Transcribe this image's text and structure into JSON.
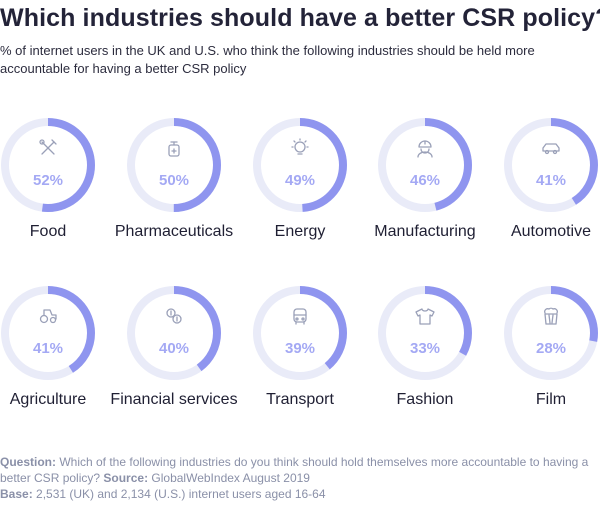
{
  "header": {
    "title": "Which industries should have a better CSR policy?",
    "subtitle": "% of internet users in the UK and U.S. who think the following industries should be held more accountable for having a better CSR policy"
  },
  "colors": {
    "ring_track": "#e9ebf8",
    "ring_fill": "#8f95ef",
    "value_text": "#a4a9f4",
    "icon": "#9aa0b8",
    "label": "#1f1f33"
  },
  "chart_data": {
    "type": "donut-grid",
    "title": "Which industries should have a better CSR policy?",
    "unit": "%",
    "categories": [
      "Food",
      "Pharmaceuticals",
      "Energy",
      "Manufacturing",
      "Automotive",
      "Agriculture",
      "Financial services",
      "Transport",
      "Fashion",
      "Film"
    ],
    "values": [
      52,
      50,
      49,
      46,
      41,
      41,
      40,
      39,
      33,
      28
    ],
    "value_labels": [
      "52%",
      "50%",
      "49%",
      "46%",
      "41%",
      "41%",
      "40%",
      "39%",
      "33%",
      "28%"
    ],
    "icons": [
      "food-icon",
      "pharmaceuticals-icon",
      "energy-icon",
      "manufacturing-icon",
      "automotive-icon",
      "agriculture-icon",
      "financial-services-icon",
      "transport-icon",
      "fashion-icon",
      "film-icon"
    ]
  },
  "footer": {
    "question_label": "Question:",
    "question_text": " Which of the following industries do you think should hold themselves more accountable to having a better CSR policy? ",
    "source_label": "Source:",
    "source_text": " GlobalWebIndex August 2019",
    "base_label": "Base:",
    "base_text": " 2,531 (UK) and 2,134 (U.S.) internet users aged 16-64"
  }
}
